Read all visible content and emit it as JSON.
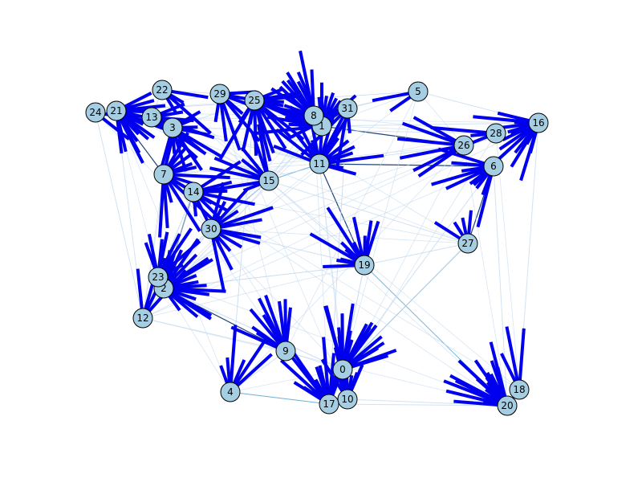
{
  "graph": {
    "colors": {
      "arrow": "#0000ee",
      "edge_light": "#c6dbef",
      "edge_mid": "#6baed6",
      "edge_dark": "#08306b",
      "node_fill": "#a6cee3",
      "node_stroke": "#000000"
    },
    "nodes": [
      {
        "id": "0"
      },
      {
        "id": "1"
      },
      {
        "id": "2"
      },
      {
        "id": "3"
      },
      {
        "id": "4"
      },
      {
        "id": "5"
      },
      {
        "id": "6"
      },
      {
        "id": "7"
      },
      {
        "id": "8"
      },
      {
        "id": "9"
      },
      {
        "id": "10"
      },
      {
        "id": "11"
      },
      {
        "id": "12"
      },
      {
        "id": "13"
      },
      {
        "id": "14"
      },
      {
        "id": "15"
      },
      {
        "id": "16"
      },
      {
        "id": "17"
      },
      {
        "id": "18"
      },
      {
        "id": "19"
      },
      {
        "id": "20"
      },
      {
        "id": "21"
      },
      {
        "id": "22"
      },
      {
        "id": "23"
      },
      {
        "id": "24"
      },
      {
        "id": "25"
      },
      {
        "id": "26"
      },
      {
        "id": "27"
      },
      {
        "id": "28"
      },
      {
        "id": "29"
      },
      {
        "id": "30"
      },
      {
        "id": "31"
      }
    ],
    "edges": [
      [
        "12",
        "9"
      ],
      [
        "12",
        "2"
      ],
      [
        "12",
        "23"
      ],
      [
        "12",
        "21"
      ],
      [
        "4",
        "9"
      ],
      [
        "4",
        "17"
      ],
      [
        "9",
        "0"
      ],
      [
        "9",
        "2"
      ],
      [
        "0",
        "17"
      ],
      [
        "0",
        "10"
      ],
      [
        "0",
        "19"
      ],
      [
        "0",
        "27"
      ],
      [
        "17",
        "4"
      ],
      [
        "17",
        "20"
      ],
      [
        "10",
        "20"
      ],
      [
        "20",
        "18"
      ],
      [
        "20",
        "19"
      ],
      [
        "20",
        "6"
      ],
      [
        "18",
        "16"
      ],
      [
        "16",
        "6"
      ],
      [
        "16",
        "28"
      ],
      [
        "16",
        "26"
      ],
      [
        "6",
        "27"
      ],
      [
        "6",
        "11"
      ],
      [
        "27",
        "19"
      ],
      [
        "27",
        "15"
      ],
      [
        "19",
        "11"
      ],
      [
        "19",
        "30"
      ],
      [
        "19",
        "2"
      ],
      [
        "11",
        "1"
      ],
      [
        "11",
        "15"
      ],
      [
        "11",
        "26"
      ],
      [
        "1",
        "8"
      ],
      [
        "1",
        "31"
      ],
      [
        "1",
        "25"
      ],
      [
        "1",
        "16"
      ],
      [
        "8",
        "5"
      ],
      [
        "31",
        "5"
      ],
      [
        "25",
        "29"
      ],
      [
        "25",
        "15"
      ],
      [
        "25",
        "3"
      ],
      [
        "29",
        "22"
      ],
      [
        "22",
        "13"
      ],
      [
        "13",
        "21"
      ],
      [
        "21",
        "24"
      ],
      [
        "21",
        "7"
      ],
      [
        "3",
        "7"
      ],
      [
        "3",
        "15"
      ],
      [
        "7",
        "14"
      ],
      [
        "7",
        "30"
      ],
      [
        "14",
        "30"
      ],
      [
        "14",
        "15"
      ],
      [
        "30",
        "2"
      ],
      [
        "30",
        "23"
      ],
      [
        "2",
        "23"
      ],
      [
        "2",
        "0"
      ],
      [
        "23",
        "7"
      ],
      [
        "15",
        "19"
      ],
      [
        "15",
        "30"
      ],
      [
        "28",
        "26"
      ],
      [
        "26",
        "1"
      ],
      [
        "5",
        "16"
      ],
      [
        "24",
        "12"
      ],
      [
        "0",
        "6"
      ],
      [
        "9",
        "17"
      ],
      [
        "14",
        "2"
      ],
      [
        "3",
        "11"
      ],
      [
        "7",
        "15"
      ],
      [
        "29",
        "1"
      ],
      [
        "13",
        "3"
      ],
      [
        "8",
        "11"
      ],
      [
        "31",
        "11"
      ]
    ],
    "arrow_fans": [
      {
        "node": "0",
        "count": 18,
        "spread": 1.6,
        "dir": -1.1
      },
      {
        "node": "17",
        "count": 14,
        "spread": 1.4,
        "dir": -1.9
      },
      {
        "node": "10",
        "count": 8,
        "spread": 1.0,
        "dir": -1.6
      },
      {
        "node": "20",
        "count": 18,
        "spread": 1.3,
        "dir": -2.4
      },
      {
        "node": "2",
        "count": 18,
        "spread": 2.4,
        "dir": -0.3
      },
      {
        "node": "23",
        "count": 8,
        "spread": 1.4,
        "dir": -1.2
      },
      {
        "node": "9",
        "count": 10,
        "spread": 1.4,
        "dir": -2.1
      },
      {
        "node": "4",
        "count": 6,
        "spread": 1.2,
        "dir": -1.3
      },
      {
        "node": "19",
        "count": 12,
        "spread": 2.0,
        "dir": -2.2
      },
      {
        "node": "11",
        "count": 16,
        "spread": 3.0,
        "dir": -1.2
      },
      {
        "node": "1",
        "count": 16,
        "spread": 2.6,
        "dir": -2.0
      },
      {
        "node": "8",
        "count": 8,
        "spread": 1.6,
        "dir": -2.4
      },
      {
        "node": "25",
        "count": 16,
        "spread": 2.6,
        "dir": 0.9
      },
      {
        "node": "29",
        "count": 8,
        "spread": 1.8,
        "dir": 0.8
      },
      {
        "node": "16",
        "count": 14,
        "spread": 1.6,
        "dir": 2.6
      },
      {
        "node": "6",
        "count": 10,
        "spread": 1.6,
        "dir": 2.6
      },
      {
        "node": "26",
        "count": 6,
        "spread": 1.2,
        "dir": 3.1
      },
      {
        "node": "21",
        "count": 16,
        "spread": 1.8,
        "dir": 0.5
      },
      {
        "node": "13",
        "count": 6,
        "spread": 1.2,
        "dir": 0.2
      },
      {
        "node": "3",
        "count": 10,
        "spread": 2.4,
        "dir": 0.6
      },
      {
        "node": "7",
        "count": 14,
        "spread": 3.0,
        "dir": 0.2
      },
      {
        "node": "14",
        "count": 8,
        "spread": 2.0,
        "dir": 0.4
      },
      {
        "node": "30",
        "count": 12,
        "spread": 2.6,
        "dir": 0.0
      },
      {
        "node": "15",
        "count": 8,
        "spread": 1.8,
        "dir": -2.6
      },
      {
        "node": "31",
        "count": 6,
        "spread": 1.4,
        "dir": 2.2
      },
      {
        "node": "22",
        "count": 4,
        "spread": 0.8,
        "dir": 0.6
      },
      {
        "node": "12",
        "count": 4,
        "spread": 0.8,
        "dir": -1.2
      },
      {
        "node": "5",
        "count": 2,
        "spread": 0.4,
        "dir": 2.8
      },
      {
        "node": "27",
        "count": 4,
        "spread": 1.0,
        "dir": -2.0
      },
      {
        "node": "18",
        "count": 3,
        "spread": 0.6,
        "dir": -1.8
      },
      {
        "node": "24",
        "count": 2,
        "spread": 0.4,
        "dir": 0.4
      },
      {
        "node": "28",
        "count": 3,
        "spread": 0.6,
        "dir": 3.0
      }
    ]
  }
}
